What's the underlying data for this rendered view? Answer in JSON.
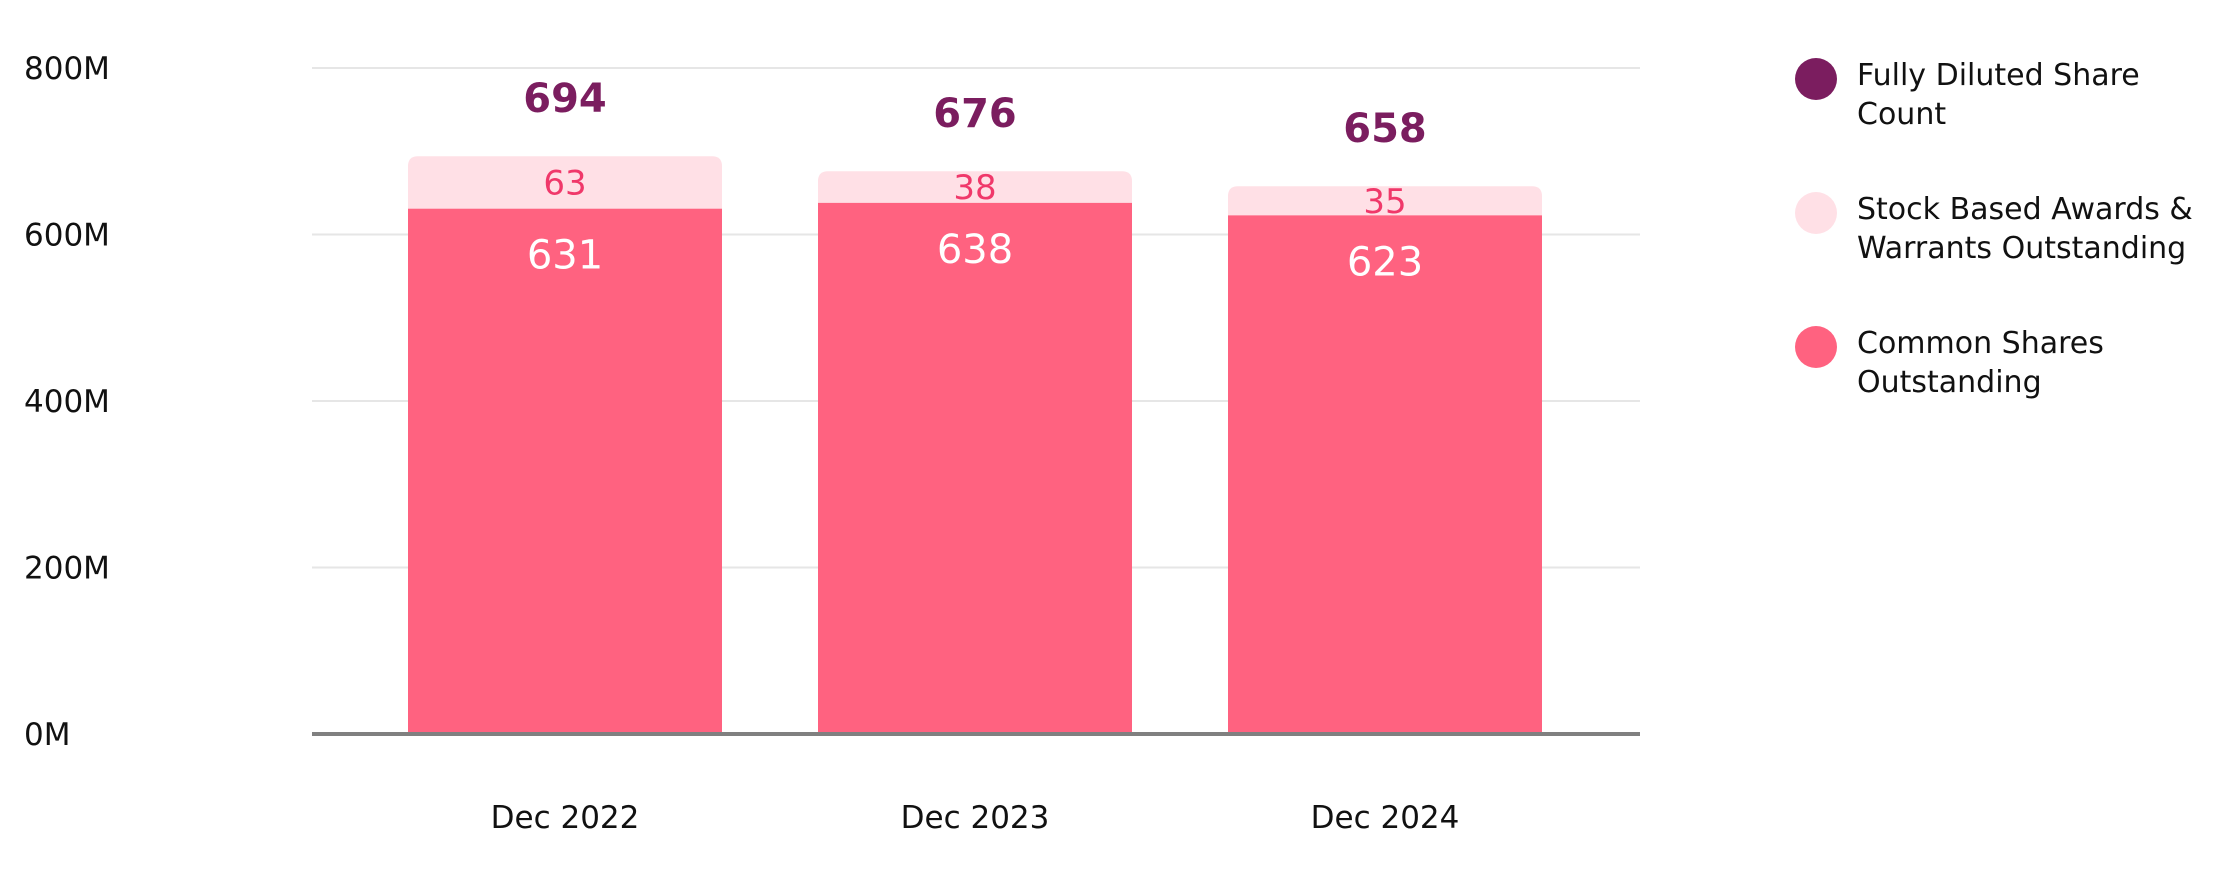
{
  "chart_data": {
    "type": "bar",
    "stacked": true,
    "categories": [
      "Dec 2022",
      "Dec 2023",
      "Dec 2024"
    ],
    "series": [
      {
        "name": "Common Shares Outstanding",
        "values": [
          631,
          638,
          623
        ],
        "color": "#ff6280"
      },
      {
        "name": "Stock Based Awards & Warrants Outstanding",
        "values": [
          63,
          38,
          35
        ],
        "color": "#ffe0e6"
      }
    ],
    "totals": {
      "name": "Fully Diluted Share Count",
      "values": [
        694,
        676,
        658
      ],
      "color": "#7b1d5f"
    },
    "ylim": [
      0,
      800
    ],
    "yticks": [
      0,
      200,
      400,
      600,
      800
    ],
    "ytick_labels": [
      "0M",
      "200M",
      "400M",
      "600M",
      "800M"
    ],
    "grid": true,
    "legend_position": "right",
    "label_colors": {
      "top": "#f0386a",
      "base": "#ffffff",
      "axis": "#808080",
      "grid": "#e6e6e6"
    }
  }
}
